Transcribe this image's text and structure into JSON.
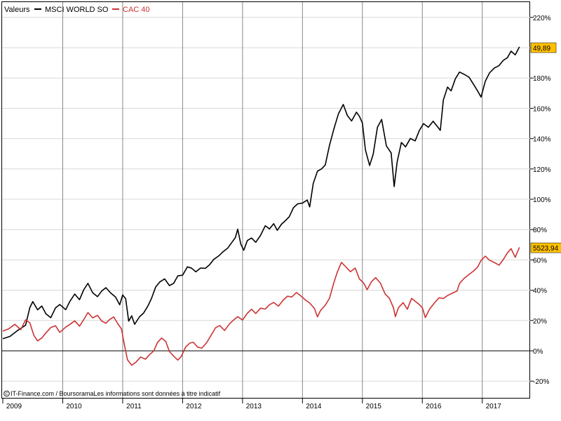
{
  "legend": {
    "label": "Valeurs",
    "items": [
      {
        "name": "MSCI WORLD SO",
        "color": "#000000"
      },
      {
        "name": "CAC 40",
        "color": "#cc3333"
      }
    ]
  },
  "footer": {
    "copyright_icon": "copyright-icon",
    "text": "IT-Finance.com / BoursoramaLes informations sont données à titre indicatif"
  },
  "last_values": [
    {
      "label": "49,89",
      "bg": "#ffc000",
      "y": 200
    },
    {
      "label": "5523,94",
      "bg": "#ffc000",
      "y": 68
    }
  ],
  "chart_data": {
    "type": "line",
    "y_unit": "%",
    "ylim": [
      -30,
      225
    ],
    "yticks": [
      -20,
      0,
      20,
      40,
      60,
      80,
      100,
      120,
      140,
      160,
      180,
      200,
      220
    ],
    "ytick_labels": [
      "-20%",
      "0%",
      "20%",
      "40%",
      "60%",
      "80%",
      "100%",
      "120%",
      "140%",
      "160%",
      "180%",
      "200%",
      "220%"
    ],
    "xlim": [
      2009.0,
      2017.67
    ],
    "xticks": [
      2009,
      2010,
      2011,
      2012,
      2013,
      2014,
      2015,
      2016,
      2017
    ],
    "xtick_labels": [
      "2009",
      "2010",
      "2011",
      "2012",
      "2013",
      "2014",
      "2015",
      "2016",
      "2017"
    ],
    "grid": true,
    "legend_position": "top-left",
    "series": [
      {
        "name": "MSCI WORLD SO",
        "color": "#000000",
        "points": [
          [
            2009.0,
            8
          ],
          [
            2009.12,
            10
          ],
          [
            2009.25,
            14
          ],
          [
            2009.38,
            17
          ],
          [
            2009.45,
            28
          ],
          [
            2009.5,
            32
          ],
          [
            2009.58,
            27
          ],
          [
            2009.65,
            30
          ],
          [
            2009.72,
            25
          ],
          [
            2009.8,
            22
          ],
          [
            2009.88,
            28
          ],
          [
            2009.95,
            30
          ],
          [
            2010.05,
            27
          ],
          [
            2010.12,
            33
          ],
          [
            2010.2,
            38
          ],
          [
            2010.28,
            34
          ],
          [
            2010.35,
            40
          ],
          [
            2010.42,
            44
          ],
          [
            2010.5,
            38
          ],
          [
            2010.58,
            36
          ],
          [
            2010.65,
            40
          ],
          [
            2010.72,
            42
          ],
          [
            2010.8,
            38
          ],
          [
            2010.88,
            35
          ],
          [
            2010.95,
            30
          ],
          [
            2011.0,
            37
          ],
          [
            2011.05,
            35
          ],
          [
            2011.1,
            20
          ],
          [
            2011.15,
            23
          ],
          [
            2011.2,
            17
          ],
          [
            2011.28,
            22
          ],
          [
            2011.35,
            25
          ],
          [
            2011.42,
            30
          ],
          [
            2011.48,
            35
          ],
          [
            2011.55,
            42
          ],
          [
            2011.62,
            45
          ],
          [
            2011.7,
            47
          ],
          [
            2011.78,
            43
          ],
          [
            2011.85,
            45
          ],
          [
            2011.92,
            50
          ],
          [
            2012.0,
            50
          ],
          [
            2012.08,
            55
          ],
          [
            2012.15,
            54
          ],
          [
            2012.22,
            52
          ],
          [
            2012.3,
            55
          ],
          [
            2012.38,
            55
          ],
          [
            2012.45,
            57
          ],
          [
            2012.52,
            60
          ],
          [
            2012.6,
            62
          ],
          [
            2012.67,
            65
          ],
          [
            2012.75,
            68
          ],
          [
            2012.82,
            72
          ],
          [
            2012.88,
            75
          ],
          [
            2012.92,
            80
          ],
          [
            2012.97,
            70
          ],
          [
            2013.02,
            66
          ],
          [
            2013.08,
            73
          ],
          [
            2013.15,
            75
          ],
          [
            2013.22,
            72
          ],
          [
            2013.3,
            76
          ],
          [
            2013.38,
            82
          ],
          [
            2013.45,
            80
          ],
          [
            2013.52,
            84
          ],
          [
            2013.58,
            80
          ],
          [
            2013.65,
            84
          ],
          [
            2013.72,
            86
          ],
          [
            2013.78,
            88
          ],
          [
            2013.85,
            94
          ],
          [
            2013.92,
            97
          ],
          [
            2014.0,
            98
          ],
          [
            2014.08,
            100
          ],
          [
            2014.12,
            95
          ],
          [
            2014.18,
            110
          ],
          [
            2014.25,
            118
          ],
          [
            2014.32,
            120
          ],
          [
            2014.38,
            123
          ],
          [
            2014.45,
            136
          ],
          [
            2014.52,
            146
          ],
          [
            2014.6,
            156
          ],
          [
            2014.68,
            162
          ],
          [
            2014.75,
            155
          ],
          [
            2014.82,
            152
          ],
          [
            2014.9,
            158
          ],
          [
            2014.95,
            155
          ],
          [
            2015.0,
            150
          ],
          [
            2015.05,
            132
          ],
          [
            2015.12,
            122
          ],
          [
            2015.18,
            130
          ],
          [
            2015.25,
            148
          ],
          [
            2015.32,
            153
          ],
          [
            2015.4,
            135
          ],
          [
            2015.48,
            130
          ],
          [
            2015.53,
            108
          ],
          [
            2015.58,
            125
          ],
          [
            2015.65,
            138
          ],
          [
            2015.72,
            135
          ],
          [
            2015.8,
            140
          ],
          [
            2015.88,
            138
          ],
          [
            2015.95,
            145
          ],
          [
            2016.02,
            150
          ],
          [
            2016.1,
            148
          ],
          [
            2016.18,
            152
          ],
          [
            2016.25,
            148
          ],
          [
            2016.3,
            145
          ],
          [
            2016.35,
            165
          ],
          [
            2016.42,
            174
          ],
          [
            2016.48,
            172
          ],
          [
            2016.55,
            180
          ],
          [
            2016.62,
            184
          ],
          [
            2016.7,
            182
          ],
          [
            2016.78,
            180
          ],
          [
            2016.85,
            176
          ],
          [
            2016.92,
            172
          ],
          [
            2016.98,
            168
          ],
          [
            2017.05,
            178
          ],
          [
            2017.12,
            183
          ],
          [
            2017.2,
            186
          ],
          [
            2017.28,
            188
          ],
          [
            2017.35,
            192
          ],
          [
            2017.42,
            194
          ],
          [
            2017.48,
            198
          ],
          [
            2017.55,
            195
          ],
          [
            2017.62,
            200
          ]
        ]
      },
      {
        "name": "CAC 40",
        "color": "#cc3333",
        "points": [
          [
            2009.0,
            13
          ],
          [
            2009.1,
            15
          ],
          [
            2009.2,
            18
          ],
          [
            2009.3,
            14
          ],
          [
            2009.38,
            20
          ],
          [
            2009.45,
            18
          ],
          [
            2009.52,
            10
          ],
          [
            2009.58,
            7
          ],
          [
            2009.65,
            9
          ],
          [
            2009.72,
            12
          ],
          [
            2009.8,
            15
          ],
          [
            2009.88,
            16
          ],
          [
            2009.95,
            12
          ],
          [
            2010.05,
            16
          ],
          [
            2010.12,
            18
          ],
          [
            2010.2,
            20
          ],
          [
            2010.28,
            16
          ],
          [
            2010.35,
            20
          ],
          [
            2010.42,
            25
          ],
          [
            2010.5,
            22
          ],
          [
            2010.58,
            24
          ],
          [
            2010.65,
            20
          ],
          [
            2010.72,
            18
          ],
          [
            2010.78,
            20
          ],
          [
            2010.85,
            22
          ],
          [
            2010.92,
            18
          ],
          [
            2010.98,
            15
          ],
          [
            2011.03,
            4
          ],
          [
            2011.08,
            -6
          ],
          [
            2011.15,
            -10
          ],
          [
            2011.22,
            -8
          ],
          [
            2011.3,
            -4
          ],
          [
            2011.38,
            -5
          ],
          [
            2011.45,
            -2
          ],
          [
            2011.52,
            0
          ],
          [
            2011.58,
            5
          ],
          [
            2011.65,
            8
          ],
          [
            2011.72,
            6
          ],
          [
            2011.78,
            0
          ],
          [
            2011.85,
            -3
          ],
          [
            2011.92,
            -6
          ],
          [
            2011.98,
            -4
          ],
          [
            2012.05,
            2
          ],
          [
            2012.12,
            5
          ],
          [
            2012.18,
            6
          ],
          [
            2012.25,
            3
          ],
          [
            2012.32,
            2
          ],
          [
            2012.4,
            5
          ],
          [
            2012.48,
            10
          ],
          [
            2012.55,
            15
          ],
          [
            2012.62,
            17
          ],
          [
            2012.7,
            14
          ],
          [
            2012.78,
            18
          ],
          [
            2012.85,
            20
          ],
          [
            2012.92,
            22
          ],
          [
            2013.0,
            20
          ],
          [
            2013.08,
            25
          ],
          [
            2013.15,
            28
          ],
          [
            2013.22,
            25
          ],
          [
            2013.3,
            28
          ],
          [
            2013.38,
            27
          ],
          [
            2013.45,
            30
          ],
          [
            2013.52,
            32
          ],
          [
            2013.6,
            30
          ],
          [
            2013.68,
            34
          ],
          [
            2013.75,
            36
          ],
          [
            2013.82,
            35
          ],
          [
            2013.9,
            38
          ],
          [
            2013.98,
            36
          ],
          [
            2014.05,
            34
          ],
          [
            2014.12,
            32
          ],
          [
            2014.2,
            28
          ],
          [
            2014.25,
            22
          ],
          [
            2014.3,
            26
          ],
          [
            2014.38,
            30
          ],
          [
            2014.45,
            35
          ],
          [
            2014.52,
            45
          ],
          [
            2014.58,
            52
          ],
          [
            2014.65,
            58
          ],
          [
            2014.72,
            55
          ],
          [
            2014.8,
            52
          ],
          [
            2014.88,
            55
          ],
          [
            2014.95,
            48
          ],
          [
            2015.02,
            45
          ],
          [
            2015.08,
            40
          ],
          [
            2015.15,
            45
          ],
          [
            2015.22,
            48
          ],
          [
            2015.3,
            45
          ],
          [
            2015.38,
            38
          ],
          [
            2015.45,
            35
          ],
          [
            2015.52,
            28
          ],
          [
            2015.55,
            22
          ],
          [
            2015.6,
            28
          ],
          [
            2015.68,
            32
          ],
          [
            2015.75,
            28
          ],
          [
            2015.82,
            35
          ],
          [
            2015.9,
            32
          ],
          [
            2015.95,
            30
          ],
          [
            2016.0,
            28
          ],
          [
            2016.05,
            22
          ],
          [
            2016.12,
            28
          ],
          [
            2016.2,
            32
          ],
          [
            2016.28,
            35
          ],
          [
            2016.35,
            34
          ],
          [
            2016.42,
            36
          ],
          [
            2016.5,
            38
          ],
          [
            2016.58,
            40
          ],
          [
            2016.62,
            45
          ],
          [
            2016.7,
            48
          ],
          [
            2016.78,
            50
          ],
          [
            2016.85,
            52
          ],
          [
            2016.92,
            55
          ],
          [
            2016.98,
            60
          ],
          [
            2017.05,
            63
          ],
          [
            2017.12,
            60
          ],
          [
            2017.2,
            58
          ],
          [
            2017.28,
            56
          ],
          [
            2017.35,
            60
          ],
          [
            2017.42,
            65
          ],
          [
            2017.48,
            68
          ],
          [
            2017.55,
            62
          ],
          [
            2017.62,
            68
          ]
        ]
      }
    ]
  },
  "icons": {
    "legend_swatch": "legend-swatch-icon",
    "copyright": "copyright-icon"
  }
}
